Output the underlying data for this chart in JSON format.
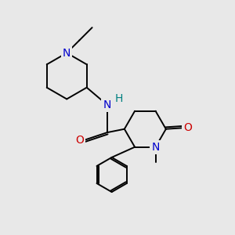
{
  "bg_color": "#e8e8e8",
  "atom_color_N": "#0000cc",
  "atom_color_O": "#cc0000",
  "atom_color_NH_H": "#008080",
  "bond_color": "#000000",
  "bond_width": 1.4,
  "font_size_atom": 10,
  "fig_w": 3.0,
  "fig_h": 3.0,
  "dpi": 100,
  "xlim": [
    0,
    10
  ],
  "ylim": [
    0,
    10
  ]
}
